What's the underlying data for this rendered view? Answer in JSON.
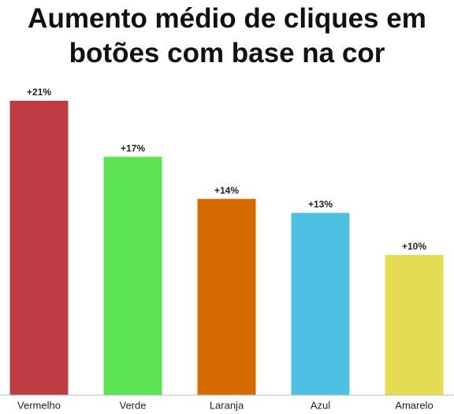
{
  "chart_data": {
    "type": "bar",
    "title": "Aumento médio de cliques em botões com base na cor",
    "categories": [
      "Vermelho",
      "Verde",
      "Laranja",
      "Azul",
      "Amarelo"
    ],
    "values": [
      21,
      17,
      14,
      13,
      10
    ],
    "value_labels": [
      "+21%",
      "+17%",
      "+14%",
      "+13%",
      "+10%"
    ],
    "colors": [
      "#c03c44",
      "#5ce452",
      "#d46a00",
      "#4ec0e4",
      "#e4dc52"
    ]
  }
}
